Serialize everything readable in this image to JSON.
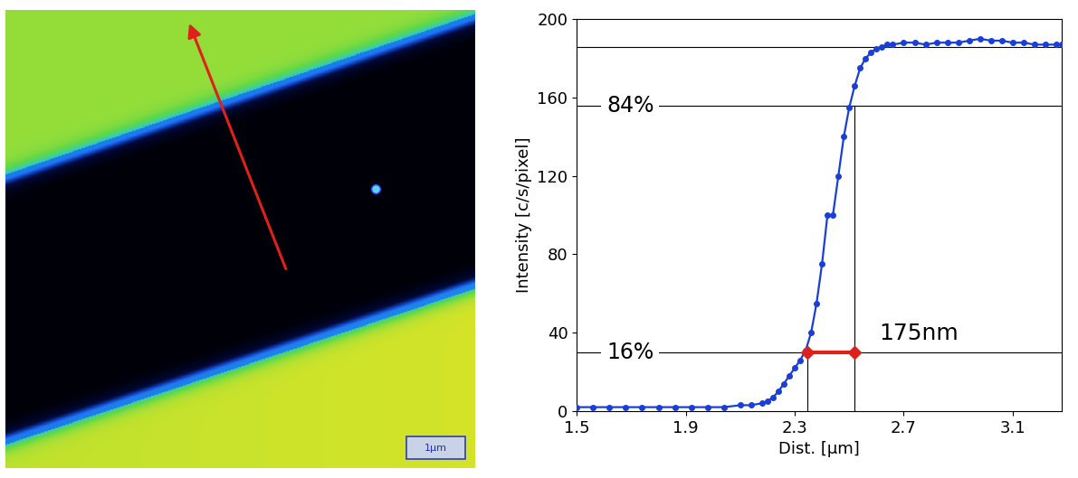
{
  "image": {
    "scale_bar": "1µm"
  },
  "chart_data": {
    "type": "line",
    "x_label": "Dist. [µm]",
    "y_label": "Intensity [c/s/pixel]",
    "x": [
      1.5,
      1.56,
      1.62,
      1.68,
      1.74,
      1.8,
      1.86,
      1.92,
      1.98,
      2.04,
      2.1,
      2.14,
      2.18,
      2.2,
      2.22,
      2.24,
      2.26,
      2.28,
      2.3,
      2.32,
      2.34,
      2.36,
      2.38,
      2.4,
      2.42,
      2.44,
      2.46,
      2.48,
      2.5,
      2.52,
      2.54,
      2.56,
      2.58,
      2.6,
      2.62,
      2.64,
      2.66,
      2.7,
      2.74,
      2.78,
      2.82,
      2.86,
      2.9,
      2.94,
      2.98,
      3.02,
      3.06,
      3.1,
      3.14,
      3.18,
      3.22,
      3.26,
      3.28
    ],
    "values": [
      2,
      2,
      2,
      2,
      2,
      2,
      2,
      2,
      2,
      2,
      3,
      3,
      4,
      5,
      7,
      10,
      14,
      18,
      22,
      26,
      31,
      40,
      55,
      75,
      100,
      100,
      120,
      140,
      155,
      166,
      175,
      180,
      183,
      185,
      186,
      187,
      187,
      188,
      188,
      187,
      188,
      188,
      188,
      189,
      190,
      189,
      189,
      188,
      188,
      187,
      187,
      187,
      187
    ],
    "color": "#1a3fd6",
    "marker": "circle",
    "line_style": "solid",
    "xlim": [
      1.5,
      3.28
    ],
    "xticks": [
      1.5,
      1.9,
      2.3,
      2.7,
      3.1
    ],
    "ylim": [
      0,
      200
    ],
    "yticks": [
      0,
      40,
      80,
      120,
      160,
      200
    ],
    "grid": false,
    "hlines": [
      186
    ],
    "level_labels": [
      {
        "label": "84%",
        "y": 156
      },
      {
        "label": "16%",
        "y": 30
      }
    ],
    "vlines": [
      {
        "x": 2.345,
        "top": 30
      },
      {
        "x": 2.52,
        "top": 156
      }
    ],
    "measure": {
      "from": 2.345,
      "to": 2.52,
      "y": 30,
      "label": "175nm",
      "color": "#e0201b"
    }
  }
}
